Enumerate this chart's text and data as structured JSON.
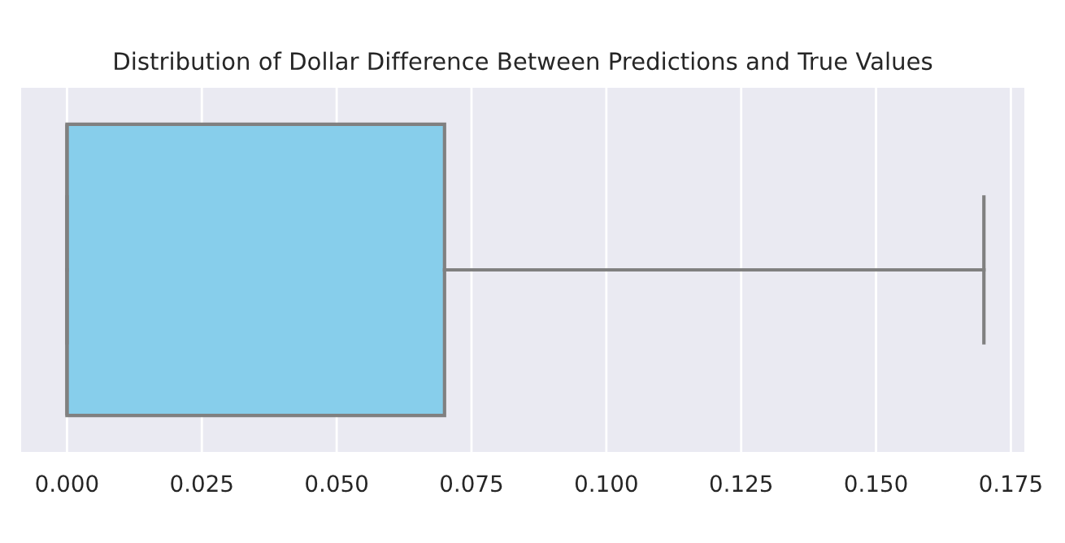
{
  "chart_data": {
    "type": "box",
    "title": "Distribution of Dollar Difference Between Predictions and True Values",
    "orientation": "horizontal",
    "categories": [
      null
    ],
    "color": "#87ceeb",
    "boxes": [
      {
        "low": 0,
        "q1": 0,
        "median": 0,
        "q3": 0.07,
        "high": 0.17
      }
    ],
    "xlim": [
      -0.0085,
      0.1775
    ],
    "xticks": [
      {
        "value": 0,
        "label": "0.000"
      },
      {
        "value": 0.025,
        "label": "0.025"
      },
      {
        "value": 0.05,
        "label": "0.050"
      },
      {
        "value": 0.075,
        "label": "0.075"
      },
      {
        "value": 0.1,
        "label": "0.100"
      },
      {
        "value": 0.125,
        "label": "0.125"
      },
      {
        "value": 0.15,
        "label": "0.150"
      },
      {
        "value": 0.175,
        "label": "0.175"
      }
    ],
    "grid": "x"
  }
}
